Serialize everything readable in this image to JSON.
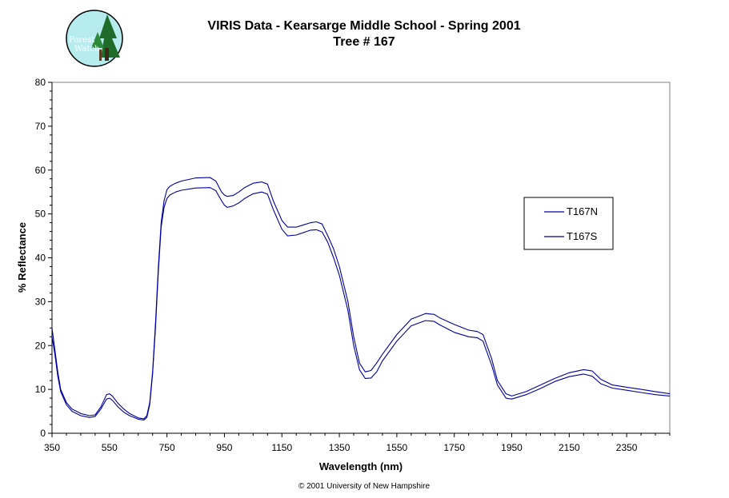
{
  "header": {
    "title_line1": "VIRIS Data - Kearsarge Middle School - Spring 2001",
    "title_line2": "Tree # 167"
  },
  "logo": {
    "line1": "Forest",
    "line2": "Watch",
    "icon": "tree-logo-icon",
    "bg_color": "#b7ecef"
  },
  "footer": {
    "credit": "© 2001 University of New Hampshire"
  },
  "chart_data": {
    "type": "line",
    "xlabel": "Wavelength (nm)",
    "ylabel": "% Reflectance",
    "xlim": [
      350,
      2500
    ],
    "ylim": [
      0,
      80
    ],
    "xticks": [
      350,
      550,
      750,
      950,
      1150,
      1350,
      1550,
      1750,
      1950,
      2150,
      2350
    ],
    "yticks": [
      0,
      10,
      20,
      30,
      40,
      50,
      60,
      70,
      80
    ],
    "grid": false,
    "legend_position": "right",
    "line_color": "#0000a0",
    "series": [
      {
        "name": "T167N",
        "x": [
          350,
          360,
          370,
          380,
          400,
          420,
          450,
          480,
          500,
          520,
          540,
          550,
          560,
          580,
          600,
          620,
          650,
          670,
          680,
          690,
          700,
          710,
          720,
          730,
          740,
          750,
          760,
          780,
          800,
          850,
          900,
          920,
          940,
          950,
          960,
          980,
          1000,
          1020,
          1050,
          1080,
          1100,
          1120,
          1150,
          1170,
          1200,
          1250,
          1270,
          1290,
          1310,
          1330,
          1350,
          1380,
          1400,
          1420,
          1440,
          1460,
          1480,
          1500,
          1550,
          1600,
          1650,
          1680,
          1700,
          1750,
          1800,
          1830,
          1850,
          1880,
          1900,
          1930,
          1950,
          2000,
          2050,
          2100,
          2150,
          2200,
          2230,
          2260,
          2300,
          2350,
          2400,
          2450,
          2500
        ],
        "y": [
          24,
          19,
          14,
          10,
          7,
          5.5,
          4.5,
          4,
          4.2,
          6,
          8.8,
          9,
          8.5,
          6.8,
          5.5,
          4.5,
          3.5,
          3.3,
          4,
          7,
          14,
          25,
          38,
          48,
          53,
          55.5,
          56.3,
          57,
          57.5,
          58.2,
          58.3,
          57.5,
          55,
          54.3,
          54,
          54.2,
          55,
          56,
          57,
          57.3,
          56.8,
          53,
          48.5,
          47,
          47,
          48,
          48.2,
          47.7,
          45,
          42,
          38,
          30,
          22,
          16,
          14,
          14.3,
          16,
          18,
          22.5,
          26,
          27.3,
          27.1,
          26.3,
          24.8,
          23.5,
          23.2,
          22.5,
          17,
          12,
          9,
          8.5,
          9.5,
          11,
          12.5,
          13.8,
          14.5,
          14.2,
          12.3,
          11,
          10.5,
          10,
          9.5,
          9
        ]
      },
      {
        "name": "T167S",
        "x": [
          350,
          360,
          370,
          380,
          400,
          420,
          450,
          480,
          500,
          520,
          540,
          550,
          560,
          580,
          600,
          620,
          650,
          670,
          680,
          690,
          700,
          710,
          720,
          730,
          740,
          750,
          760,
          780,
          800,
          850,
          900,
          920,
          940,
          950,
          960,
          980,
          1000,
          1020,
          1050,
          1080,
          1100,
          1120,
          1150,
          1170,
          1200,
          1250,
          1270,
          1290,
          1310,
          1330,
          1350,
          1380,
          1400,
          1420,
          1440,
          1460,
          1480,
          1500,
          1550,
          1600,
          1650,
          1680,
          1700,
          1750,
          1800,
          1830,
          1850,
          1880,
          1900,
          1930,
          1950,
          2000,
          2050,
          2100,
          2150,
          2200,
          2230,
          2260,
          2300,
          2350,
          2400,
          2450,
          2500
        ],
        "y": [
          22,
          18,
          13,
          9.5,
          6.5,
          5,
          4,
          3.6,
          3.8,
          5.5,
          7.8,
          8,
          7.5,
          6,
          4.8,
          4,
          3.2,
          3,
          3.6,
          6.5,
          13.5,
          24,
          37,
          47,
          51.5,
          53.5,
          54.3,
          55,
          55.4,
          55.9,
          56,
          55.3,
          53,
          52,
          51.5,
          51.8,
          52.5,
          53.5,
          54.6,
          55,
          54.5,
          51,
          46.5,
          45,
          45.2,
          46.3,
          46.4,
          45.9,
          43.5,
          40,
          36,
          28,
          20,
          14.5,
          12.5,
          12.6,
          14,
          16.5,
          21,
          24.5,
          25.7,
          25.5,
          24.7,
          23,
          22,
          21.8,
          21,
          15.5,
          11,
          8,
          7.8,
          8.8,
          10.2,
          11.8,
          12.9,
          13.5,
          13,
          11.3,
          10.3,
          9.8,
          9.3,
          8.8,
          8.5
        ]
      }
    ]
  }
}
